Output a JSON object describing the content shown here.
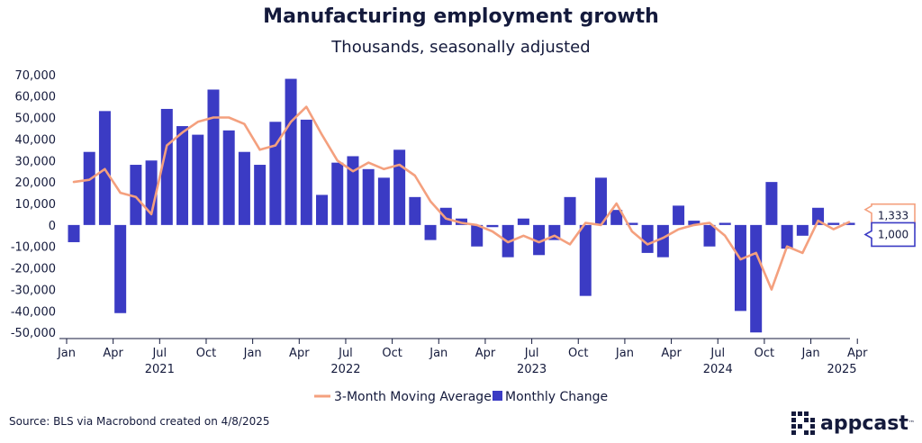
{
  "chart_data": {
    "type": "bar",
    "title": "Manufacturing employment growth",
    "subtitle": "Thousands, seasonally adjusted",
    "x": [
      "2021-01",
      "2021-02",
      "2021-03",
      "2021-04",
      "2021-05",
      "2021-06",
      "2021-07",
      "2021-08",
      "2021-09",
      "2021-10",
      "2021-11",
      "2021-12",
      "2022-01",
      "2022-02",
      "2022-03",
      "2022-04",
      "2022-05",
      "2022-06",
      "2022-07",
      "2022-08",
      "2022-09",
      "2022-10",
      "2022-11",
      "2022-12",
      "2023-01",
      "2023-02",
      "2023-03",
      "2023-04",
      "2023-05",
      "2023-06",
      "2023-07",
      "2023-08",
      "2023-09",
      "2023-10",
      "2023-11",
      "2023-12",
      "2024-01",
      "2024-02",
      "2024-03",
      "2024-04",
      "2024-05",
      "2024-06",
      "2024-07",
      "2024-08",
      "2024-09",
      "2024-10",
      "2024-11",
      "2024-12",
      "2025-01",
      "2025-02",
      "2025-03"
    ],
    "series": [
      {
        "name": "3-Month Moving Average",
        "kind": "line",
        "color": "#f4a07e",
        "values": [
          20000,
          21000,
          26000,
          15000,
          13000,
          5000,
          37000,
          43000,
          48000,
          50000,
          50000,
          47000,
          35000,
          37000,
          48000,
          55000,
          42000,
          30000,
          25000,
          29000,
          26000,
          28000,
          23000,
          11000,
          3000,
          1000,
          0,
          -3000,
          -8000,
          -5000,
          -8000,
          -5000,
          -9000,
          1000,
          0,
          10000,
          -3000,
          -9000,
          -6000,
          -2000,
          0,
          1000,
          -5000,
          -16000,
          -13000,
          -30000,
          -10000,
          -13000,
          2000,
          -2000,
          1333
        ]
      },
      {
        "name": "Monthly Change",
        "kind": "bar",
        "color": "#3b3bc4",
        "values": [
          -8000,
          34000,
          53000,
          -41000,
          28000,
          30000,
          54000,
          46000,
          42000,
          63000,
          44000,
          34000,
          28000,
          48000,
          68000,
          49000,
          14000,
          29000,
          32000,
          26000,
          22000,
          35000,
          13000,
          -7000,
          8000,
          3000,
          -10000,
          -1000,
          -15000,
          3000,
          -14000,
          -7000,
          13000,
          -33000,
          22000,
          7000,
          1000,
          -13000,
          -15000,
          9000,
          2000,
          -10000,
          1000,
          -40000,
          -50000,
          20000,
          -11000,
          -5000,
          8000,
          1000,
          1000
        ]
      }
    ],
    "yticks": [
      "70,000",
      "60,000",
      "50,000",
      "40,000",
      "30,000",
      "20,000",
      "10,000",
      "0",
      "-10,000",
      "-20,000",
      "-30,000",
      "-40,000",
      "-50,000"
    ],
    "ylim": [
      -52000,
      72000
    ],
    "xticks": [
      {
        "month": "2021-01",
        "label": "Jan"
      },
      {
        "month": "2021-04",
        "label": "Apr"
      },
      {
        "month": "2021-07",
        "label": "Jul"
      },
      {
        "month": "2021-10",
        "label": "Oct"
      },
      {
        "month": "2022-01",
        "label": "Jan"
      },
      {
        "month": "2022-04",
        "label": "Apr"
      },
      {
        "month": "2022-07",
        "label": "Jul"
      },
      {
        "month": "2022-10",
        "label": "Oct"
      },
      {
        "month": "2023-01",
        "label": "Jan"
      },
      {
        "month": "2023-04",
        "label": "Apr"
      },
      {
        "month": "2023-07",
        "label": "Jul"
      },
      {
        "month": "2023-10",
        "label": "Oct"
      },
      {
        "month": "2024-01",
        "label": "Jan"
      },
      {
        "month": "2024-04",
        "label": "Apr"
      },
      {
        "month": "2024-07",
        "label": "Jul"
      },
      {
        "month": "2024-10",
        "label": "Oct"
      },
      {
        "month": "2025-01",
        "label": "Jan"
      },
      {
        "month": "2025-04",
        "label": "Apr"
      }
    ],
    "years": [
      {
        "month": "2021-07",
        "label": "2021"
      },
      {
        "month": "2022-07",
        "label": "2022"
      },
      {
        "month": "2023-07",
        "label": "2023"
      },
      {
        "month": "2024-07",
        "label": "2024"
      },
      {
        "month": "2025-03",
        "label": "2025"
      }
    ],
    "callouts": [
      {
        "series": "3-Month Moving Average",
        "label": "1,333",
        "color": "#f4a07e"
      },
      {
        "series": "Monthly Change",
        "label": "1,000",
        "color": "#3b3bc4"
      }
    ],
    "legend_position": "bottom",
    "grid": false
  },
  "source": "Source: BLS via Macrobond created on 4/8/2025",
  "logo": {
    "text": "appcast",
    "mark": "™",
    "icon": "pixel-grid-icon"
  }
}
